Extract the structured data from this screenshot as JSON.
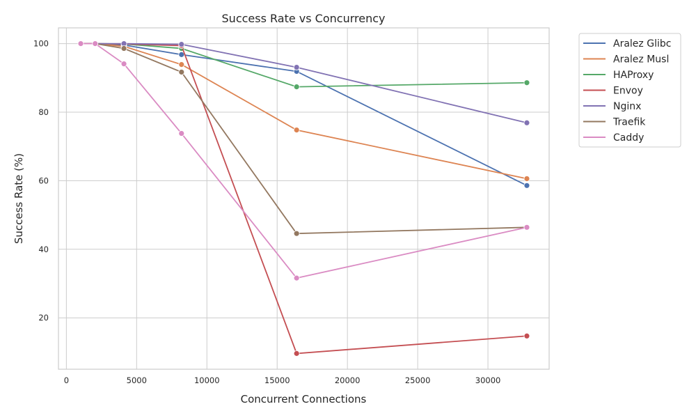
{
  "chart_data": {
    "type": "line",
    "title": "Success Rate vs Concurrency",
    "xlabel": "Concurrent Connections",
    "ylabel": "Success Rate (%)",
    "xlim": [
      -563,
      34355
    ],
    "ylim": [
      5.0,
      104.6
    ],
    "xticks": [
      0,
      5000,
      10000,
      15000,
      20000,
      25000,
      30000
    ],
    "yticks": [
      20,
      40,
      60,
      80,
      100
    ],
    "grid": true,
    "legend_position": "outside-top-right",
    "x": [
      1024,
      2048,
      4096,
      8192,
      16384,
      32768
    ],
    "series": [
      {
        "name": "Aralez Glibc",
        "color": "#4c72b0",
        "values": [
          100,
          100,
          99.6,
          96.8,
          91.9,
          58.6
        ]
      },
      {
        "name": "Aralez Musl",
        "color": "#dd8452",
        "values": [
          100,
          100,
          99.2,
          93.9,
          74.8,
          60.6
        ]
      },
      {
        "name": "HAProxy",
        "color": "#55a868",
        "values": [
          100,
          100,
          99.9,
          98.6,
          87.4,
          88.6
        ]
      },
      {
        "name": "Envoy",
        "color": "#c44e52",
        "values": [
          100,
          100,
          99.9,
          99.4,
          9.6,
          14.7
        ]
      },
      {
        "name": "Nginx",
        "color": "#8172b3",
        "values": [
          100,
          100,
          100,
          99.8,
          93.1,
          76.9
        ]
      },
      {
        "name": "Traefik",
        "color": "#937860",
        "values": [
          100,
          100,
          98.6,
          91.7,
          44.6,
          46.4
        ]
      },
      {
        "name": "Caddy",
        "color": "#da8bc3",
        "values": [
          100,
          100,
          94.1,
          73.8,
          31.6,
          46.4
        ]
      }
    ]
  }
}
